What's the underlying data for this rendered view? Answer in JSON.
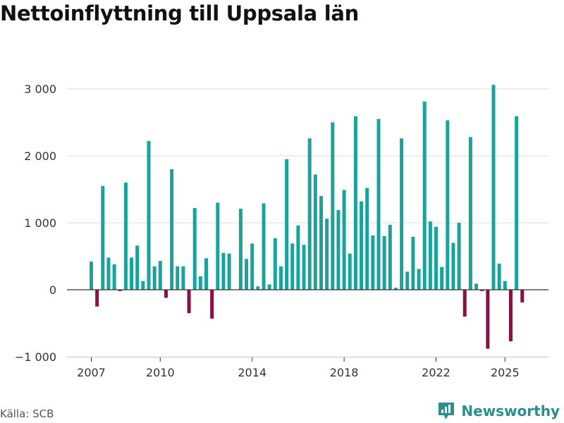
{
  "title": "Nettoinflyttning till Uppsala län",
  "source": "Källa: SCB",
  "brand": "Newsworthy",
  "colors": {
    "positive": "#1aa39b",
    "negative": "#8b0f42",
    "brand": "#2a8f8c"
  },
  "chart_data": {
    "type": "bar",
    "title": "Nettoinflyttning till Uppsala län",
    "xlabel": "",
    "ylabel": "",
    "ylim": [
      -1000,
      3200
    ],
    "yticks": [
      -1000,
      0,
      1000,
      2000,
      3000
    ],
    "ytick_labels": [
      "−1 000",
      "0",
      "1 000",
      "2 000",
      "3 000"
    ],
    "xticks": [
      2007,
      2010,
      2014,
      2018,
      2022,
      2025
    ],
    "xtick_labels": [
      "2007",
      "2010",
      "2014",
      "2018",
      "2022",
      "2025"
    ],
    "frequency": "quarterly",
    "start": "2007 Q1",
    "values": [
      420,
      -250,
      1550,
      480,
      380,
      -20,
      1600,
      480,
      660,
      130,
      2220,
      350,
      430,
      -120,
      1800,
      350,
      350,
      -350,
      1220,
      200,
      470,
      -430,
      1300,
      550,
      540,
      0,
      1210,
      460,
      690,
      50,
      1290,
      80,
      770,
      350,
      1950,
      690,
      960,
      670,
      2260,
      1720,
      1400,
      1060,
      2500,
      1190,
      1490,
      540,
      2590,
      1320,
      1520,
      810,
      2550,
      800,
      970,
      30,
      2260,
      270,
      790,
      310,
      2810,
      1020,
      940,
      340,
      2530,
      700,
      1000,
      -400,
      2280,
      90,
      -20,
      -880,
      3060,
      390,
      130,
      -770,
      2590,
      -190
    ]
  }
}
